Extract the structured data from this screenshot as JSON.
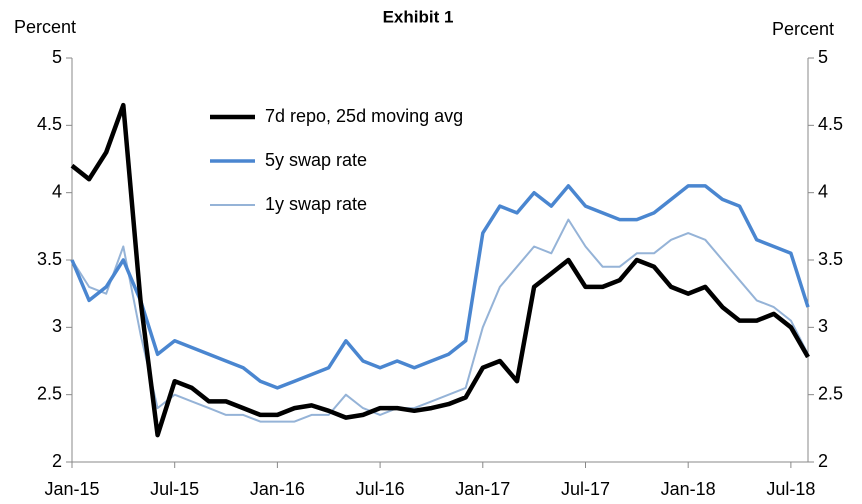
{
  "chart_data": {
    "type": "line",
    "title": "Exhibit 1",
    "ylabel": "Percent",
    "y2label": "Percent",
    "categories": [
      "Jan-15",
      null,
      null,
      null,
      null,
      null,
      "Jul-15",
      null,
      null,
      null,
      null,
      null,
      "Jan-16",
      null,
      null,
      null,
      null,
      null,
      "Jul-16",
      null,
      null,
      null,
      null,
      null,
      "Jan-17",
      null,
      null,
      null,
      null,
      null,
      "Jul-17",
      null,
      null,
      null,
      null,
      null,
      "Jan-18",
      null,
      null,
      null,
      null,
      null,
      "Jul-18",
      null
    ],
    "series": [
      {
        "name": "7d repo, 25d moving avg",
        "color": "#000000",
        "values": [
          4.2,
          4.1,
          4.3,
          4.65,
          3.2,
          2.2,
          2.6,
          2.55,
          2.45,
          2.45,
          2.4,
          2.35,
          2.35,
          2.4,
          2.42,
          2.38,
          2.33,
          2.35,
          2.4,
          2.4,
          2.38,
          2.4,
          2.43,
          2.48,
          2.7,
          2.75,
          2.6,
          3.3,
          3.4,
          3.5,
          3.3,
          3.3,
          3.35,
          3.5,
          3.45,
          3.3,
          3.25,
          3.3,
          3.15,
          3.05,
          3.05,
          3.1,
          3.0,
          2.78
        ]
      },
      {
        "name": "5y swap rate",
        "color": "#4a86d0",
        "values": [
          3.5,
          3.2,
          3.3,
          3.5,
          3.2,
          2.8,
          2.9,
          2.85,
          2.8,
          2.75,
          2.7,
          2.6,
          2.55,
          2.6,
          2.65,
          2.7,
          2.9,
          2.75,
          2.7,
          2.75,
          2.7,
          2.75,
          2.8,
          2.9,
          3.7,
          3.9,
          3.85,
          4.0,
          3.9,
          4.05,
          3.9,
          3.85,
          3.8,
          3.8,
          3.85,
          3.95,
          4.05,
          4.05,
          3.95,
          3.9,
          3.65,
          3.6,
          3.55,
          3.15
        ]
      },
      {
        "name": "1y swap rate",
        "color": "#95b3d7",
        "values": [
          3.5,
          3.3,
          3.25,
          3.6,
          2.95,
          2.4,
          2.5,
          2.45,
          2.4,
          2.35,
          2.35,
          2.3,
          2.3,
          2.3,
          2.35,
          2.35,
          2.5,
          2.4,
          2.35,
          2.4,
          2.4,
          2.45,
          2.5,
          2.55,
          3.0,
          3.3,
          3.45,
          3.6,
          3.55,
          3.8,
          3.6,
          3.45,
          3.45,
          3.55,
          3.55,
          3.65,
          3.7,
          3.65,
          3.5,
          3.35,
          3.2,
          3.15,
          3.05,
          2.8
        ]
      }
    ],
    "ylim": [
      2,
      5
    ],
    "yticks": [
      2,
      2.5,
      3,
      3.5,
      4,
      4.5,
      5
    ],
    "y2lim": [
      2,
      5
    ],
    "y2ticks": [
      2,
      2.5,
      3,
      3.5,
      4,
      4.5,
      5
    ],
    "grid": false,
    "legend": "upper center"
  }
}
